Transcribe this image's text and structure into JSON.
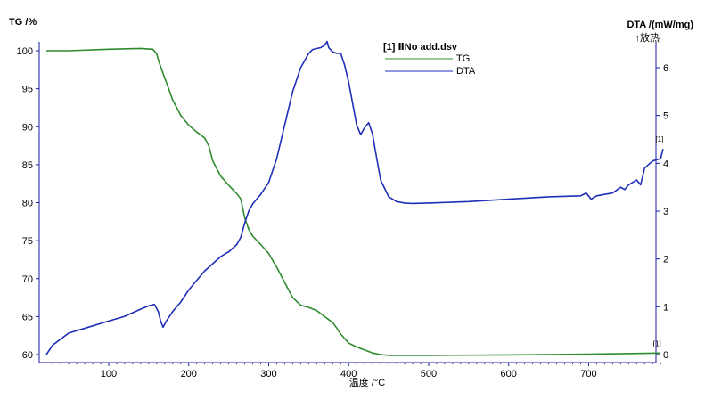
{
  "chart_data": {
    "type": "line",
    "title": "",
    "xlabel": "温度 /°C",
    "ylabel_left": "TG /%",
    "ylabel_right": "DTA /(mW/mg)",
    "ylabel_right_sub": "↑放热",
    "xlim": [
      20,
      800
    ],
    "ylim_left": [
      59.5,
      100.5
    ],
    "ylim_right": [
      0,
      6.5
    ],
    "x_ticks": [
      100,
      200,
      300,
      400,
      500,
      600,
      700
    ],
    "y_left_ticks": [
      60,
      65,
      70,
      75,
      80,
      85,
      90,
      95,
      100
    ],
    "y_right_ticks": [
      0,
      1,
      2,
      3,
      4,
      5,
      6
    ],
    "grid": false,
    "legend": {
      "position": "top-center",
      "title": "[1] ⅡNo add.dsv",
      "entries": [
        "TG",
        "DTA"
      ]
    },
    "end_markers": {
      "tg": "[1]",
      "dta": "[1]"
    },
    "colors": {
      "tg": "#2e8b2e",
      "dta": "#1f2fb8",
      "axis": "#1a1aa0"
    },
    "series": [
      {
        "name": "TG",
        "axis": "left",
        "x": [
          22,
          50,
          100,
          140,
          155,
          160,
          163,
          168,
          175,
          180,
          185,
          190,
          200,
          210,
          220,
          225,
          230,
          240,
          250,
          260,
          265,
          270,
          275,
          280,
          290,
          300,
          310,
          320,
          330,
          340,
          350,
          360,
          370,
          380,
          385,
          390,
          400,
          410,
          420,
          430,
          440,
          450,
          500,
          600,
          700,
          790
        ],
        "values": [
          100,
          100,
          100.2,
          100.3,
          100.2,
          99.6,
          98.5,
          97,
          95,
          93.5,
          92.5,
          91.5,
          90.2,
          89.3,
          88.5,
          87.5,
          85.5,
          83.5,
          82.3,
          81.2,
          80.5,
          78,
          76.5,
          75.6,
          74.5,
          73.3,
          71.5,
          69.5,
          67.5,
          66.5,
          66.2,
          65.8,
          65,
          64.2,
          63.5,
          62.7,
          61.5,
          61,
          60.6,
          60.2,
          60,
          59.9,
          59.9,
          59.95,
          60.05,
          60.2
        ]
      },
      {
        "name": "DTA",
        "axis": "right",
        "x": [
          22,
          30,
          50,
          80,
          100,
          120,
          140,
          150,
          157,
          162,
          165,
          168,
          172,
          180,
          190,
          200,
          210,
          220,
          230,
          240,
          250,
          260,
          265,
          270,
          275,
          280,
          290,
          300,
          310,
          320,
          330,
          340,
          350,
          355,
          360,
          365,
          370,
          373,
          375,
          380,
          385,
          390,
          395,
          400,
          410,
          415,
          420,
          425,
          430,
          433,
          440,
          450,
          460,
          470,
          480,
          500,
          550,
          600,
          650,
          690,
          697,
          703,
          710,
          730,
          740,
          745,
          750,
          760,
          765,
          770,
          780,
          790,
          793
        ],
        "values": [
          0,
          0.2,
          0.45,
          0.6,
          0.7,
          0.8,
          0.95,
          1.02,
          1.05,
          0.9,
          0.7,
          0.57,
          0.7,
          0.9,
          1.1,
          1.35,
          1.55,
          1.75,
          1.9,
          2.05,
          2.15,
          2.3,
          2.45,
          2.75,
          3.0,
          3.15,
          3.35,
          3.6,
          4.1,
          4.8,
          5.5,
          6.0,
          6.3,
          6.38,
          6.4,
          6.42,
          6.47,
          6.55,
          6.42,
          6.33,
          6.3,
          6.3,
          6.05,
          5.7,
          4.8,
          4.6,
          4.75,
          4.85,
          4.6,
          4.3,
          3.65,
          3.3,
          3.2,
          3.17,
          3.16,
          3.17,
          3.2,
          3.25,
          3.3,
          3.32,
          3.38,
          3.25,
          3.32,
          3.38,
          3.5,
          3.45,
          3.55,
          3.65,
          3.55,
          3.9,
          4.05,
          4.1,
          4.3
        ]
      }
    ]
  }
}
